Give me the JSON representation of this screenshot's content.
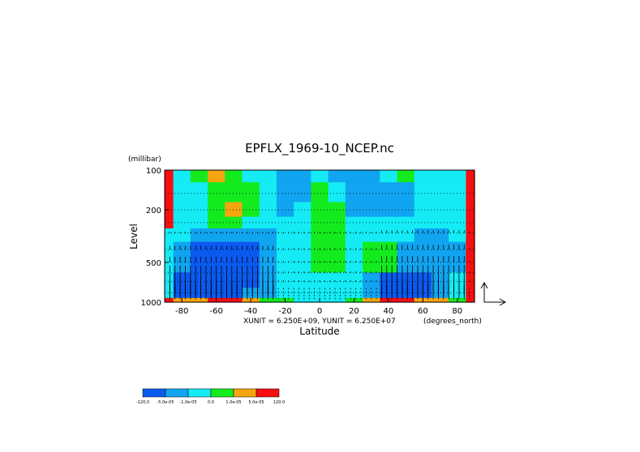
{
  "chart_data": {
    "type": "heatmap",
    "title": "EPFLX_1969-10_NCEP.nc",
    "xlabel": "Latitude",
    "ylabel": "Level",
    "y_units": "(millibar)",
    "x_units": "(degrees_north)",
    "xlim": [
      -90,
      90
    ],
    "ylim": [
      1000,
      100
    ],
    "y_scale": "log",
    "x_ticks": [
      "-80",
      "-60",
      "-40",
      "-20",
      "0",
      "20",
      "40",
      "60",
      "80"
    ],
    "x_tick_values": [
      -80,
      -60,
      -40,
      -20,
      0,
      20,
      40,
      60,
      80
    ],
    "y_ticks": [
      "100",
      "200",
      "500",
      "1000"
    ],
    "y_tick_values": [
      100,
      200,
      500,
      1000
    ],
    "vector_scale_text": "XUNIT = 6.250E+09, YUNIT = 6.250E+07",
    "colorbar": {
      "colors": [
        "#0a5af0",
        "#11a4f0",
        "#14ebf5",
        "#14eb1e",
        "#f5a50f",
        "#f50f0f"
      ],
      "labels": [
        "-120.0",
        "-5.0e-05",
        "-1.0e-05",
        "0.0",
        "1.0e-05",
        "5.0e-05",
        "120.0"
      ]
    },
    "grid_lat": [
      -90,
      -80,
      -70,
      -60,
      -50,
      -40,
      -30,
      -20,
      -10,
      0,
      10,
      20,
      30,
      40,
      50,
      60,
      70,
      80,
      90
    ],
    "grid_lev": [
      1000,
      850,
      700,
      500,
      400,
      300,
      250,
      200,
      150,
      100
    ],
    "field_classes": [
      [
        5,
        4,
        4,
        5,
        5,
        4,
        3,
        3,
        2,
        2,
        2,
        3,
        4,
        5,
        5,
        4,
        4,
        3,
        5
      ],
      [
        2,
        0,
        0,
        0,
        0,
        1,
        1,
        2,
        2,
        2,
        2,
        2,
        1,
        0,
        0,
        0,
        1,
        2,
        5
      ],
      [
        2,
        0,
        0,
        0,
        0,
        0,
        1,
        2,
        2,
        2,
        2,
        2,
        1,
        0,
        0,
        0,
        1,
        2,
        5
      ],
      [
        2,
        1,
        0,
        0,
        0,
        0,
        1,
        2,
        2,
        3,
        3,
        2,
        3,
        3,
        1,
        1,
        1,
        1,
        5
      ],
      [
        2,
        1,
        0,
        0,
        0,
        0,
        1,
        2,
        2,
        3,
        3,
        2,
        3,
        3,
        1,
        1,
        1,
        1,
        5
      ],
      [
        2,
        2,
        1,
        1,
        1,
        1,
        1,
        2,
        2,
        3,
        3,
        2,
        2,
        2,
        2,
        1,
        1,
        2,
        5
      ],
      [
        5,
        2,
        2,
        3,
        3,
        2,
        2,
        2,
        2,
        3,
        3,
        2,
        2,
        2,
        2,
        2,
        2,
        2,
        5
      ],
      [
        5,
        2,
        2,
        3,
        4,
        3,
        2,
        1,
        2,
        3,
        3,
        1,
        1,
        1,
        1,
        2,
        2,
        2,
        5
      ],
      [
        5,
        2,
        2,
        3,
        3,
        3,
        2,
        1,
        1,
        3,
        2,
        1,
        1,
        1,
        1,
        2,
        2,
        2,
        5
      ],
      [
        5,
        2,
        3,
        4,
        3,
        2,
        2,
        1,
        1,
        2,
        1,
        1,
        1,
        2,
        3,
        2,
        2,
        2,
        5
      ]
    ]
  }
}
